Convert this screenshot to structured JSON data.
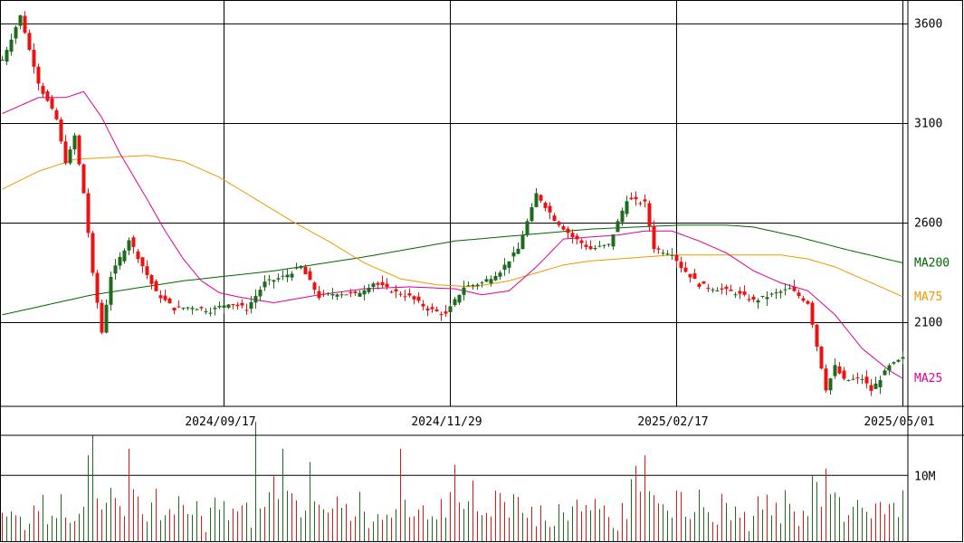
{
  "chart_data": {
    "type": "candlestick",
    "colors": {
      "up": "#1e6b1e",
      "down": "#ee1111",
      "ma25": "#dd0099",
      "ma75": "#ee9900",
      "ma200": "#006600",
      "grid": "#000000"
    },
    "y_ticks": [
      {
        "value": 3600,
        "label": "3600"
      },
      {
        "value": 3100,
        "label": "3100"
      },
      {
        "value": 2600,
        "label": "2600"
      },
      {
        "value": 2100,
        "label": "2100"
      }
    ],
    "y_range": [
      1680,
      3720
    ],
    "x_ticks": [
      {
        "index": 49,
        "label": "2024/09/17"
      },
      {
        "index": 99,
        "label": "2024/11/29"
      },
      {
        "index": 149,
        "label": "2025/02/17"
      },
      {
        "index": 199,
        "label": "2025/05/01"
      }
    ],
    "volume_ticks": [
      {
        "value": 10,
        "label": "10M"
      }
    ],
    "volume_range": [
      0,
      16
    ],
    "ma_labels": {
      "ma200": "MA200",
      "ma75": "MA75",
      "ma25": "MA25"
    },
    "waypoints": [
      [
        0,
        3420
      ],
      [
        4,
        3640
      ],
      [
        8,
        3300
      ],
      [
        12,
        3120
      ],
      [
        14,
        2900
      ],
      [
        16,
        3040
      ],
      [
        18,
        2750
      ],
      [
        20,
        2350
      ],
      [
        22,
        2050
      ],
      [
        24,
        2330
      ],
      [
        28,
        2520
      ],
      [
        30,
        2430
      ],
      [
        34,
        2250
      ],
      [
        38,
        2170
      ],
      [
        42,
        2180
      ],
      [
        46,
        2160
      ],
      [
        50,
        2200
      ],
      [
        54,
        2170
      ],
      [
        58,
        2300
      ],
      [
        62,
        2330
      ],
      [
        66,
        2380
      ],
      [
        70,
        2230
      ],
      [
        74,
        2250
      ],
      [
        78,
        2240
      ],
      [
        82,
        2300
      ],
      [
        86,
        2260
      ],
      [
        90,
        2230
      ],
      [
        94,
        2170
      ],
      [
        98,
        2140
      ],
      [
        102,
        2280
      ],
      [
        106,
        2300
      ],
      [
        110,
        2360
      ],
      [
        114,
        2470
      ],
      [
        118,
        2750
      ],
      [
        122,
        2620
      ],
      [
        126,
        2530
      ],
      [
        130,
        2470
      ],
      [
        134,
        2490
      ],
      [
        138,
        2720
      ],
      [
        142,
        2700
      ],
      [
        144,
        2470
      ],
      [
        148,
        2450
      ],
      [
        150,
        2380
      ],
      [
        154,
        2290
      ],
      [
        158,
        2270
      ],
      [
        162,
        2250
      ],
      [
        166,
        2210
      ],
      [
        170,
        2240
      ],
      [
        174,
        2270
      ],
      [
        178,
        2200
      ],
      [
        180,
        1980
      ],
      [
        182,
        1760
      ],
      [
        184,
        1880
      ],
      [
        186,
        1810
      ],
      [
        190,
        1820
      ],
      [
        192,
        1760
      ],
      [
        196,
        1880
      ],
      [
        199,
        1920
      ]
    ],
    "ma25_anchor": [
      [
        0,
        3150
      ],
      [
        8,
        3230
      ],
      [
        14,
        3230
      ],
      [
        18,
        3260
      ],
      [
        22,
        3130
      ],
      [
        26,
        2950
      ],
      [
        32,
        2720
      ],
      [
        36,
        2560
      ],
      [
        40,
        2420
      ],
      [
        44,
        2310
      ],
      [
        48,
        2250
      ],
      [
        52,
        2230
      ],
      [
        60,
        2200
      ],
      [
        70,
        2240
      ],
      [
        80,
        2270
      ],
      [
        90,
        2280
      ],
      [
        100,
        2270
      ],
      [
        106,
        2240
      ],
      [
        112,
        2260
      ],
      [
        118,
        2380
      ],
      [
        124,
        2520
      ],
      [
        130,
        2530
      ],
      [
        136,
        2540
      ],
      [
        142,
        2560
      ],
      [
        148,
        2560
      ],
      [
        154,
        2510
      ],
      [
        160,
        2450
      ],
      [
        166,
        2360
      ],
      [
        172,
        2300
      ],
      [
        178,
        2260
      ],
      [
        184,
        2140
      ],
      [
        190,
        1970
      ],
      [
        196,
        1860
      ],
      [
        199,
        1820
      ]
    ],
    "ma75_anchor": [
      [
        0,
        2770
      ],
      [
        8,
        2860
      ],
      [
        16,
        2920
      ],
      [
        24,
        2930
      ],
      [
        32,
        2940
      ],
      [
        40,
        2910
      ],
      [
        48,
        2830
      ],
      [
        56,
        2720
      ],
      [
        64,
        2610
      ],
      [
        72,
        2510
      ],
      [
        80,
        2400
      ],
      [
        88,
        2320
      ],
      [
        96,
        2290
      ],
      [
        104,
        2280
      ],
      [
        112,
        2310
      ],
      [
        118,
        2350
      ],
      [
        124,
        2390
      ],
      [
        130,
        2410
      ],
      [
        136,
        2420
      ],
      [
        142,
        2430
      ],
      [
        148,
        2440
      ],
      [
        154,
        2440
      ],
      [
        160,
        2440
      ],
      [
        166,
        2440
      ],
      [
        172,
        2440
      ],
      [
        178,
        2420
      ],
      [
        184,
        2380
      ],
      [
        190,
        2320
      ],
      [
        196,
        2260
      ],
      [
        199,
        2230
      ]
    ],
    "ma200_anchor": [
      [
        0,
        2140
      ],
      [
        20,
        2240
      ],
      [
        40,
        2310
      ],
      [
        60,
        2360
      ],
      [
        80,
        2430
      ],
      [
        100,
        2510
      ],
      [
        110,
        2530
      ],
      [
        120,
        2550
      ],
      [
        130,
        2570
      ],
      [
        140,
        2580
      ],
      [
        150,
        2590
      ],
      [
        160,
        2590
      ],
      [
        166,
        2580
      ],
      [
        176,
        2530
      ],
      [
        186,
        2470
      ],
      [
        199,
        2400
      ]
    ],
    "volume_pattern": [
      5,
      3,
      4,
      6,
      3,
      2,
      4,
      7,
      5,
      8,
      3,
      6,
      4,
      9,
      5,
      3,
      2,
      6,
      4,
      12,
      15,
      8,
      6,
      9,
      11,
      7,
      5,
      6,
      4,
      10,
      8,
      6,
      5,
      7,
      9,
      4,
      6,
      5,
      3,
      8
    ],
    "volume_spikes": {
      "19": 13,
      "20": 16,
      "28": 14,
      "56": 18,
      "62": 14,
      "68": 12,
      "88": 14,
      "142": 13,
      "180": 9,
      "182": 11
    }
  }
}
